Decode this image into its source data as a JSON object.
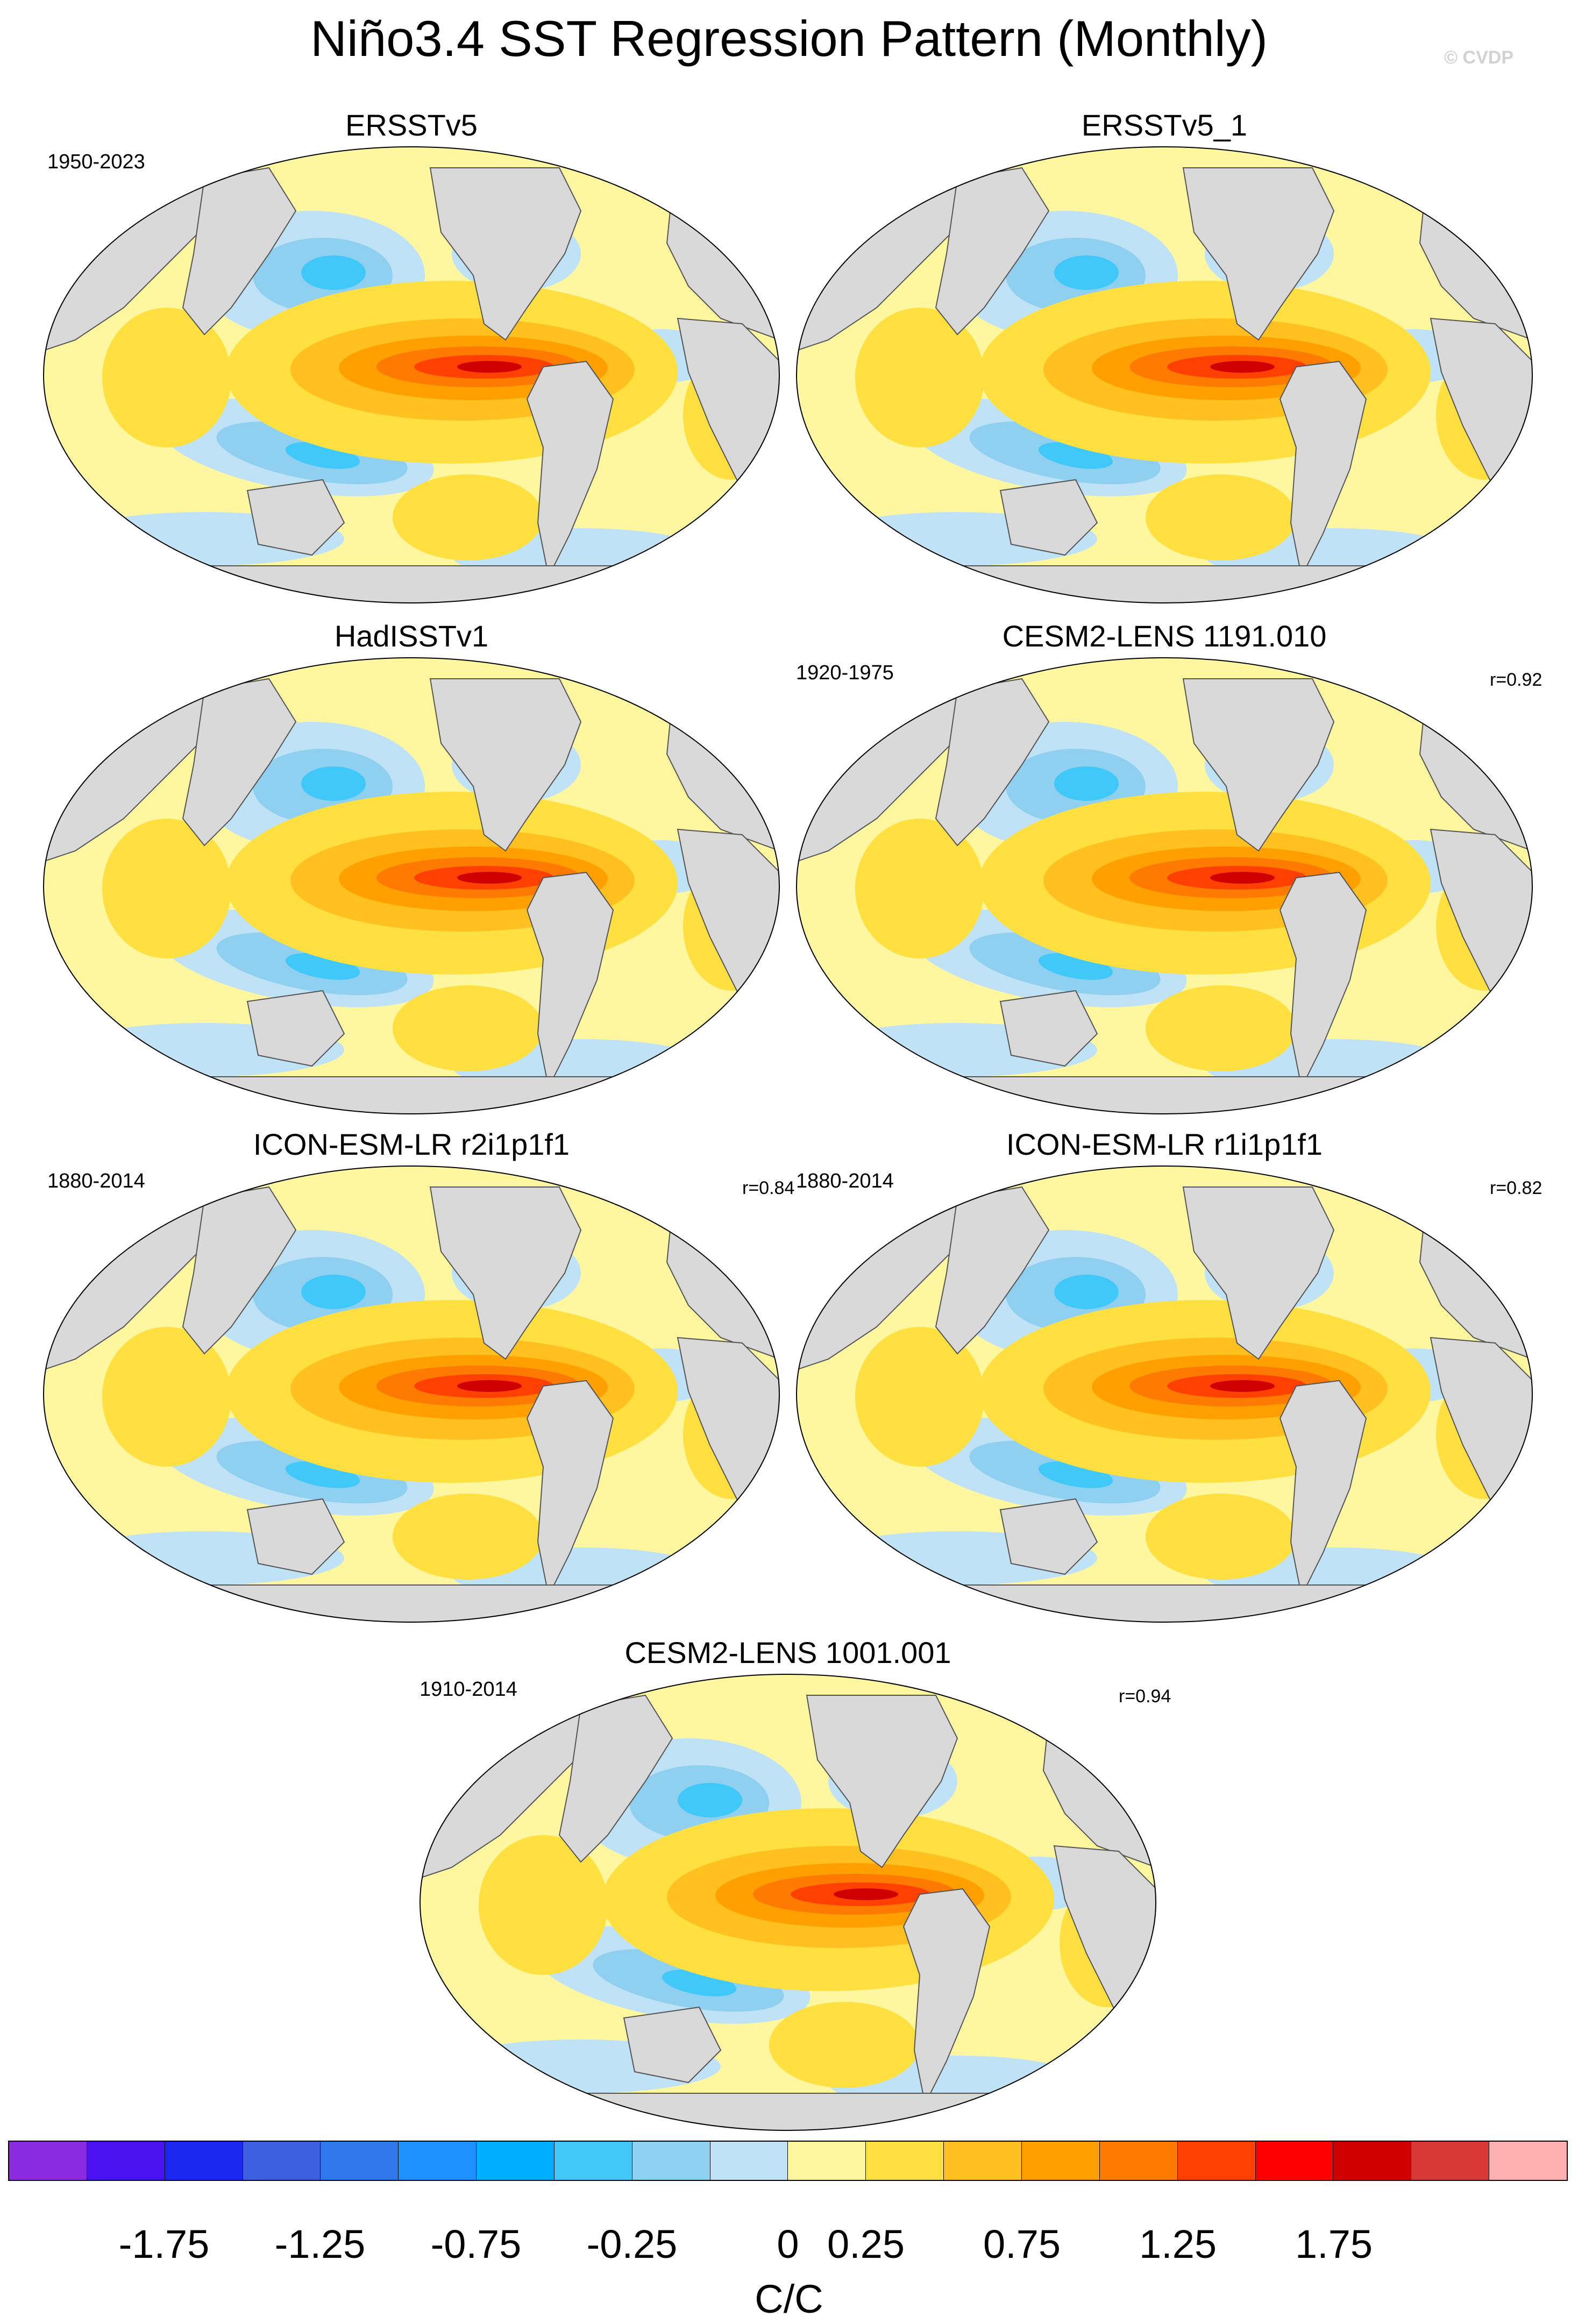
{
  "title": "Niño3.4 SST Regression Pattern (Monthly)",
  "watermark": "© CVDP",
  "panels": [
    {
      "title": "ERSSTv5",
      "period": "1950-2023",
      "r": ""
    },
    {
      "title": "ERSSTv5_1",
      "period": "",
      "r": ""
    },
    {
      "title": "HadISSTv1",
      "period": "",
      "r": ""
    },
    {
      "title": "CESM2-LENS 1191.010",
      "period": "1920-1975",
      "r": "r=0.92"
    },
    {
      "title": "ICON-ESM-LR r2i1p1f1",
      "period": "1880-2014",
      "r": "r=0.84"
    },
    {
      "title": "ICON-ESM-LR r1i1p1f1",
      "period": "1880-2014",
      "r": "r=0.82"
    },
    {
      "title": "CESM2-LENS 1001.001",
      "period": "1910-2014",
      "r": "r=0.94"
    }
  ],
  "colorbar": {
    "units": "C/C",
    "tick_labels": [
      "-1.75",
      "-1.25",
      "-0.75",
      "-0.25",
      "0",
      "0.25",
      "0.75",
      "1.25",
      "1.75"
    ],
    "colors": [
      "#8a2be2",
      "#4b12f0",
      "#1c28f0",
      "#3e5fe0",
      "#2f78ec",
      "#1e90ff",
      "#00aeff",
      "#40c8f8",
      "#8fd0f0",
      "#bfe2f6",
      "#fff7a0",
      "#ffe040",
      "#ffc020",
      "#ffa000",
      "#ff7a00",
      "#ff4000",
      "#ff0000",
      "#d00000",
      "#d83838",
      "#ffb0b0"
    ]
  },
  "icons": {
    "land": "gray-land",
    "ocean-shading": "sst-regression-shading"
  }
}
